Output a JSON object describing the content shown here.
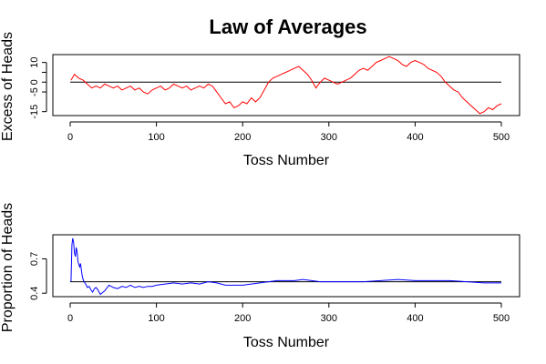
{
  "figure": {
    "title": "Law of Averages"
  },
  "chart_data": [
    {
      "type": "line",
      "xlabel": "Toss Number",
      "ylabel": "Excess of Heads",
      "xlim": [
        0,
        500
      ],
      "ylim": [
        -17,
        14
      ],
      "xticks": [
        0,
        100,
        200,
        300,
        400,
        500
      ],
      "yticks": [
        -15,
        -5,
        0,
        5,
        10
      ],
      "ytick_labels": [
        "-15",
        "-5",
        "0",
        "",
        "10"
      ],
      "reference_line": 0,
      "grid": false,
      "colors": {
        "series": "#ff0000",
        "reference": "#000000"
      },
      "series": [
        {
          "x": [
            1,
            5,
            10,
            15,
            20,
            25,
            30,
            35,
            40,
            45,
            50,
            55,
            60,
            65,
            70,
            75,
            80,
            85,
            90,
            95,
            100,
            105,
            110,
            115,
            120,
            125,
            130,
            135,
            140,
            145,
            150,
            155,
            160,
            165,
            170,
            175,
            180,
            185,
            190,
            195,
            200,
            205,
            210,
            215,
            220,
            225,
            230,
            235,
            240,
            245,
            250,
            255,
            260,
            265,
            270,
            275,
            280,
            285,
            290,
            295,
            300,
            305,
            310,
            315,
            320,
            325,
            330,
            335,
            340,
            345,
            350,
            355,
            360,
            365,
            370,
            375,
            380,
            385,
            390,
            395,
            400,
            405,
            410,
            415,
            420,
            425,
            430,
            435,
            440,
            445,
            450,
            455,
            460,
            465,
            470,
            475,
            480,
            485,
            490,
            495,
            500
          ],
          "values": [
            1,
            4,
            2,
            1,
            -1,
            -3,
            -2,
            -3,
            -1,
            -2,
            -3,
            -2,
            -4,
            -3,
            -2,
            -4,
            -3,
            -5,
            -6,
            -4,
            -3,
            -2,
            -4,
            -3,
            -1,
            -2,
            -3,
            -2,
            -4,
            -3,
            -2,
            -3,
            -1,
            -2,
            -5,
            -8,
            -11,
            -10,
            -13,
            -12,
            -10,
            -11,
            -8,
            -10,
            -8,
            -4,
            0,
            2,
            3,
            4,
            5,
            6,
            7,
            8,
            6,
            4,
            1,
            -3,
            0,
            2,
            1,
            0,
            -1,
            0,
            1,
            2,
            4,
            6,
            7,
            6,
            8,
            10,
            11,
            12,
            13,
            12,
            11,
            9,
            8,
            10,
            11,
            10,
            9,
            7,
            6,
            5,
            3,
            0,
            -2,
            -4,
            -5,
            -8,
            -10,
            -12,
            -14,
            -16,
            -15,
            -13,
            -14,
            -12,
            -11
          ]
        }
      ]
    },
    {
      "type": "line",
      "xlabel": "Toss Number",
      "ylabel": "Proportion of Heads",
      "xlim": [
        0,
        500
      ],
      "ylim": [
        0.37,
        0.91
      ],
      "xticks": [
        0,
        100,
        200,
        300,
        400,
        500
      ],
      "yticks": [
        0.4,
        0.7
      ],
      "ytick_labels": [
        "0.4",
        "0.7"
      ],
      "reference_line": 0.5,
      "grid": false,
      "colors": {
        "series": "#0000ff",
        "reference": "#000000"
      },
      "series": [
        {
          "x": [
            1,
            2,
            3,
            4,
            5,
            6,
            7,
            8,
            9,
            10,
            11,
            12,
            13,
            14,
            15,
            16,
            18,
            20,
            22,
            24,
            26,
            28,
            30,
            32,
            35,
            40,
            45,
            50,
            55,
            60,
            65,
            70,
            75,
            80,
            85,
            90,
            95,
            100,
            110,
            120,
            130,
            140,
            150,
            160,
            170,
            180,
            190,
            200,
            210,
            220,
            230,
            240,
            250,
            260,
            270,
            280,
            290,
            300,
            320,
            340,
            360,
            380,
            400,
            420,
            440,
            460,
            480,
            500
          ],
          "values": [
            0.5,
            0.82,
            0.88,
            0.84,
            0.75,
            0.72,
            0.8,
            0.76,
            0.68,
            0.65,
            0.63,
            0.66,
            0.6,
            0.55,
            0.52,
            0.5,
            0.48,
            0.45,
            0.46,
            0.43,
            0.41,
            0.44,
            0.45,
            0.43,
            0.39,
            0.42,
            0.47,
            0.45,
            0.44,
            0.46,
            0.45,
            0.47,
            0.45,
            0.46,
            0.45,
            0.46,
            0.46,
            0.47,
            0.48,
            0.49,
            0.48,
            0.49,
            0.48,
            0.5,
            0.49,
            0.47,
            0.47,
            0.47,
            0.48,
            0.49,
            0.5,
            0.51,
            0.51,
            0.51,
            0.52,
            0.51,
            0.5,
            0.5,
            0.5,
            0.5,
            0.51,
            0.52,
            0.51,
            0.51,
            0.51,
            0.5,
            0.49,
            0.49
          ]
        }
      ]
    }
  ]
}
